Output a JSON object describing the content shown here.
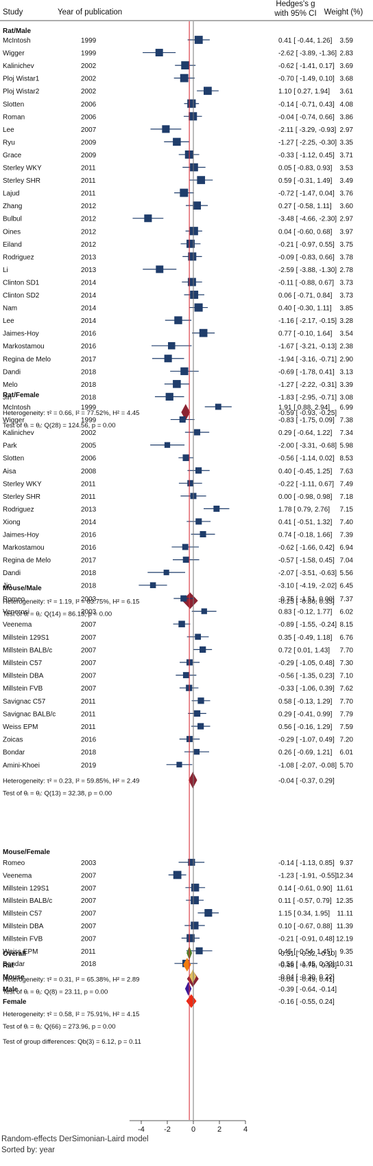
{
  "header": {
    "study": "Study",
    "year": "Year of publication",
    "effect_line1": "Hedges's g",
    "effect_line2": "with 95% CI",
    "weight": "Weight (%)"
  },
  "groups": [
    {
      "label": "Rat/Male",
      "studies": [
        {
          "study": "McIntosh",
          "year": "1999",
          "g": 0.41,
          "lo": -0.44,
          "hi": 1.26,
          "text": "0.41 [ -0.44,  1.26]",
          "weight": "3.59"
        },
        {
          "study": "Wigger",
          "year": "1999",
          "g": -2.62,
          "lo": -3.89,
          "hi": -1.36,
          "text": "-2.62 [ -3.89, -1.36]",
          "weight": "2.83"
        },
        {
          "study": "Kalinichev",
          "year": "2002",
          "g": -0.62,
          "lo": -1.41,
          "hi": 0.17,
          "text": "-0.62 [ -1.41,  0.17]",
          "weight": "3.69"
        },
        {
          "study": "Ploj Wistar1",
          "year": "2002",
          "g": -0.7,
          "lo": -1.49,
          "hi": 0.1,
          "text": "-0.70 [ -1.49,  0.10]",
          "weight": "3.68"
        },
        {
          "study": "Ploj Wistar2",
          "year": "2002",
          "g": 1.1,
          "lo": 0.27,
          "hi": 1.94,
          "text": "1.10 [  0.27,  1.94]",
          "weight": "3.61"
        },
        {
          "study": "Slotten",
          "year": "2006",
          "g": -0.14,
          "lo": -0.71,
          "hi": 0.43,
          "text": "-0.14 [ -0.71,  0.43]",
          "weight": "4.08"
        },
        {
          "study": "Roman",
          "year": "2006",
          "g": -0.04,
          "lo": -0.74,
          "hi": 0.66,
          "text": "-0.04 [ -0.74,  0.66]",
          "weight": "3.86"
        },
        {
          "study": "Lee",
          "year": "2007",
          "g": -2.11,
          "lo": -3.29,
          "hi": -0.93,
          "text": "-2.11 [ -3.29, -0.93]",
          "weight": "2.97"
        },
        {
          "study": "Ryu",
          "year": "2009",
          "g": -1.27,
          "lo": -2.25,
          "hi": -0.3,
          "text": "-1.27 [ -2.25, -0.30]",
          "weight": "3.35"
        },
        {
          "study": "Grace",
          "year": "2009",
          "g": -0.33,
          "lo": -1.12,
          "hi": 0.45,
          "text": "-0.33 [ -1.12,  0.45]",
          "weight": "3.71"
        },
        {
          "study": "Sterley WKY",
          "year": "2011",
          "g": 0.05,
          "lo": -0.83,
          "hi": 0.93,
          "text": "0.05 [ -0.83,  0.93]",
          "weight": "3.53"
        },
        {
          "study": "Sterley SHR",
          "year": "2011",
          "g": 0.59,
          "lo": -0.31,
          "hi": 1.49,
          "text": "0.59 [ -0.31,  1.49]",
          "weight": "3.49"
        },
        {
          "study": "Lajud",
          "year": "2011",
          "g": -0.72,
          "lo": -1.47,
          "hi": 0.04,
          "text": "-0.72 [ -1.47,  0.04]",
          "weight": "3.76"
        },
        {
          "study": "Zhang",
          "year": "2012",
          "g": 0.27,
          "lo": -0.58,
          "hi": 1.11,
          "text": "0.27 [ -0.58,  1.11]",
          "weight": "3.60"
        },
        {
          "study": "Bulbul",
          "year": "2012",
          "g": -3.48,
          "lo": -4.66,
          "hi": -2.3,
          "text": "-3.48 [ -4.66, -2.30]",
          "weight": "2.97"
        },
        {
          "study": "Oines",
          "year": "2012",
          "g": 0.04,
          "lo": -0.6,
          "hi": 0.68,
          "text": "0.04 [ -0.60,  0.68]",
          "weight": "3.97"
        },
        {
          "study": "Eiland",
          "year": "2012",
          "g": -0.21,
          "lo": -0.97,
          "hi": 0.55,
          "text": "-0.21 [ -0.97,  0.55]",
          "weight": "3.75"
        },
        {
          "study": "Rodriguez",
          "year": "2013",
          "g": -0.09,
          "lo": -0.83,
          "hi": 0.66,
          "text": "-0.09 [ -0.83,  0.66]",
          "weight": "3.78"
        },
        {
          "study": "Li",
          "year": "2013",
          "g": -2.59,
          "lo": -3.88,
          "hi": -1.3,
          "text": "-2.59 [ -3.88, -1.30]",
          "weight": "2.78"
        },
        {
          "study": "Clinton SD1",
          "year": "2014",
          "g": -0.11,
          "lo": -0.88,
          "hi": 0.67,
          "text": "-0.11 [ -0.88,  0.67]",
          "weight": "3.73"
        },
        {
          "study": "Clinton SD2",
          "year": "2014",
          "g": 0.06,
          "lo": -0.71,
          "hi": 0.84,
          "text": "0.06 [ -0.71,  0.84]",
          "weight": "3.73"
        },
        {
          "study": "Nam",
          "year": "2014",
          "g": 0.4,
          "lo": -0.3,
          "hi": 1.11,
          "text": "0.40 [ -0.30,  1.11]",
          "weight": "3.85"
        },
        {
          "study": "Lee",
          "year": "2014",
          "g": -1.16,
          "lo": -2.17,
          "hi": -0.15,
          "text": "-1.16 [ -2.17, -0.15]",
          "weight": "3.28"
        },
        {
          "study": "Jaimes-Hoy",
          "year": "2016",
          "g": 0.77,
          "lo": -0.1,
          "hi": 1.64,
          "text": "0.77 [ -0.10,  1.64]",
          "weight": "3.54"
        },
        {
          "study": "Markostamou",
          "year": "2016",
          "g": -1.67,
          "lo": -3.21,
          "hi": -0.13,
          "text": "-1.67 [ -3.21, -0.13]",
          "weight": "2.38"
        },
        {
          "study": "Regina de Melo",
          "year": "2017",
          "g": -1.94,
          "lo": -3.16,
          "hi": -0.71,
          "text": "-1.94 [ -3.16, -0.71]",
          "weight": "2.90"
        },
        {
          "study": "Dandi",
          "year": "2018",
          "g": -0.69,
          "lo": -1.78,
          "hi": 0.41,
          "text": "-0.69 [ -1.78,  0.41]",
          "weight": "3.13"
        },
        {
          "study": "Melo",
          "year": "2018",
          "g": -1.27,
          "lo": -2.22,
          "hi": -0.31,
          "text": "-1.27 [ -2.22, -0.31]",
          "weight": "3.39"
        },
        {
          "study": "Jin",
          "year": "2018",
          "g": -1.83,
          "lo": -2.95,
          "hi": -0.71,
          "text": "-1.83 [ -2.95, -0.71]",
          "weight": "3.08"
        }
      ],
      "summary": {
        "label": "Heterogeneity: τ² = 0.66, I² = 77.52%, H² = 4.45",
        "g": -0.59,
        "lo": -0.93,
        "hi": -0.25,
        "text": "-0.59 [ -0.93, -0.25]"
      },
      "test": "Test of θᵢ = θⱼ: Q(28) = 124.56, p = 0.00"
    },
    {
      "label": "Rat/Female",
      "studies": [
        {
          "study": "McIntosh",
          "year": "1999",
          "g": 1.91,
          "lo": 0.88,
          "hi": 2.94,
          "text": "1.91 [  0.88,  2.94]",
          "weight": "6.99"
        },
        {
          "study": "Wigger",
          "year": "1999",
          "g": -0.83,
          "lo": -1.75,
          "hi": 0.09,
          "text": "-0.83 [ -1.75,  0.09]",
          "weight": "7.38"
        },
        {
          "study": "Kalinichev",
          "year": "2002",
          "g": 0.29,
          "lo": -0.64,
          "hi": 1.22,
          "text": "0.29 [ -0.64,  1.22]",
          "weight": "7.34"
        },
        {
          "study": "Park",
          "year": "2005",
          "g": -2.0,
          "lo": -3.31,
          "hi": -0.68,
          "text": "-2.00 [ -3.31, -0.68]",
          "weight": "5.98"
        },
        {
          "study": "Slotten",
          "year": "2006",
          "g": -0.56,
          "lo": -1.14,
          "hi": 0.02,
          "text": "-0.56 [ -1.14,  0.02]",
          "weight": "8.53"
        },
        {
          "study": "Aisa",
          "year": "2008",
          "g": 0.4,
          "lo": -0.45,
          "hi": 1.25,
          "text": "0.40 [ -0.45,  1.25]",
          "weight": "7.63"
        },
        {
          "study": "Sterley WKY",
          "year": "2011",
          "g": -0.22,
          "lo": -1.11,
          "hi": 0.67,
          "text": "-0.22 [ -1.11,  0.67]",
          "weight": "7.49"
        },
        {
          "study": "Sterley SHR",
          "year": "2011",
          "g": 0.0,
          "lo": -0.98,
          "hi": 0.98,
          "text": "0.00 [ -0.98,  0.98]",
          "weight": "7.18"
        },
        {
          "study": "Rodriguez",
          "year": "2013",
          "g": 1.78,
          "lo": 0.79,
          "hi": 2.76,
          "text": "1.78 [  0.79,  2.76]",
          "weight": "7.15"
        },
        {
          "study": "Xiong",
          "year": "2014",
          "g": 0.41,
          "lo": -0.51,
          "hi": 1.32,
          "text": "0.41 [ -0.51,  1.32]",
          "weight": "7.40"
        },
        {
          "study": "Jaimes-Hoy",
          "year": "2016",
          "g": 0.74,
          "lo": -0.18,
          "hi": 1.66,
          "text": "0.74 [ -0.18,  1.66]",
          "weight": "7.39"
        },
        {
          "study": "Markostamou",
          "year": "2016",
          "g": -0.62,
          "lo": -1.66,
          "hi": 0.42,
          "text": "-0.62 [ -1.66,  0.42]",
          "weight": "6.94"
        },
        {
          "study": "Regina de Melo",
          "year": "2017",
          "g": -0.57,
          "lo": -1.58,
          "hi": 0.45,
          "text": "-0.57 [ -1.58,  0.45]",
          "weight": "7.04"
        },
        {
          "study": "Dandi",
          "year": "2018",
          "g": -2.07,
          "lo": -3.51,
          "hi": -0.63,
          "text": "-2.07 [ -3.51, -0.63]",
          "weight": "5.56"
        },
        {
          "study": "Jin",
          "year": "2018",
          "g": -3.1,
          "lo": -4.19,
          "hi": -2.02,
          "text": "-3.10 [ -4.19, -2.02]",
          "weight": "6.45"
        }
      ],
      "summary": {
        "label": "Heterogeneity: τ² = 1.19, I² = 83.75%, H² = 6.15",
        "g": -0.25,
        "lo": -0.86,
        "hi": 0.35,
        "text": "-0.25 [ -0.86,  0.35]"
      },
      "test": "Test of θᵢ = θⱼ: Q(14) = 86.13, p = 0.00"
    },
    {
      "label": "Mouse/Male",
      "studies": [
        {
          "study": "Romeo",
          "year": "2003",
          "g": -0.75,
          "lo": -1.51,
          "hi": 0.0,
          "text": "-0.75 [ -1.51,  0.00]",
          "weight": "7.37"
        },
        {
          "study": "Venerosi",
          "year": "2003",
          "g": 0.83,
          "lo": -0.12,
          "hi": 1.77,
          "text": "0.83 [ -0.12,  1.77]",
          "weight": "6.02"
        },
        {
          "study": "Veenema",
          "year": "2007",
          "g": -0.89,
          "lo": -1.55,
          "hi": -0.24,
          "text": "-0.89 [ -1.55, -0.24]",
          "weight": "8.15"
        },
        {
          "study": "Millstein 129S1",
          "year": "2007",
          "g": 0.35,
          "lo": -0.49,
          "hi": 1.18,
          "text": "0.35 [ -0.49,  1.18]",
          "weight": "6.76"
        },
        {
          "study": "Millstein BALB/c",
          "year": "2007",
          "g": 0.72,
          "lo": 0.01,
          "hi": 1.43,
          "text": "0.72 [  0.01,  1.43]",
          "weight": "7.70"
        },
        {
          "study": "Millstein C57",
          "year": "2007",
          "g": -0.29,
          "lo": -1.05,
          "hi": 0.48,
          "text": "-0.29 [ -1.05,  0.48]",
          "weight": "7.30"
        },
        {
          "study": "Millstein DBA",
          "year": "2007",
          "g": -0.56,
          "lo": -1.35,
          "hi": 0.23,
          "text": "-0.56 [ -1.35,  0.23]",
          "weight": "7.10"
        },
        {
          "study": "Millstein FVB",
          "year": "2007",
          "g": -0.33,
          "lo": -1.06,
          "hi": 0.39,
          "text": "-0.33 [ -1.06,  0.39]",
          "weight": "7.62"
        },
        {
          "study": "Savignac C57",
          "year": "2011",
          "g": 0.58,
          "lo": -0.13,
          "hi": 1.29,
          "text": "0.58 [ -0.13,  1.29]",
          "weight": "7.70"
        },
        {
          "study": "Savignac BALB/c",
          "year": "2011",
          "g": 0.29,
          "lo": -0.41,
          "hi": 0.99,
          "text": "0.29 [ -0.41,  0.99]",
          "weight": "7.79"
        },
        {
          "study": "Weiss EPM",
          "year": "2011",
          "g": 0.56,
          "lo": -0.16,
          "hi": 1.29,
          "text": "0.56 [ -0.16,  1.29]",
          "weight": "7.59"
        },
        {
          "study": "Zoicas",
          "year": "2016",
          "g": -0.29,
          "lo": -1.07,
          "hi": 0.49,
          "text": "-0.29 [ -1.07,  0.49]",
          "weight": "7.20"
        },
        {
          "study": "Bondar",
          "year": "2018",
          "g": 0.26,
          "lo": -0.69,
          "hi": 1.21,
          "text": "0.26 [ -0.69,  1.21]",
          "weight": "6.01"
        },
        {
          "study": "Amini-Khoei",
          "year": "2019",
          "g": -1.08,
          "lo": -2.07,
          "hi": -0.08,
          "text": "-1.08 [ -2.07, -0.08]",
          "weight": "5.70"
        }
      ],
      "summary": {
        "label": "Heterogeneity: τ² = 0.23, I² = 59.85%, H² = 2.49",
        "g": -0.04,
        "lo": -0.37,
        "hi": 0.29,
        "text": "-0.04 [ -0.37,  0.29]"
      },
      "test": "Test of θᵢ = θⱼ: Q(13) = 32.38, p = 0.00"
    },
    {
      "label": "Mouse/Female",
      "studies": [
        {
          "study": "Romeo",
          "year": "2003",
          "g": -0.14,
          "lo": -1.13,
          "hi": 0.85,
          "text": "-0.14 [ -1.13,  0.85]",
          "weight": "9.37"
        },
        {
          "study": "Veenema",
          "year": "2007",
          "g": -1.23,
          "lo": -1.91,
          "hi": -0.55,
          "text": "-1.23 [ -1.91, -0.55]",
          "weight": "12.34"
        },
        {
          "study": "Millstein 129S1",
          "year": "2007",
          "g": 0.14,
          "lo": -0.61,
          "hi": 0.9,
          "text": "0.14 [ -0.61,  0.90]",
          "weight": "11.61"
        },
        {
          "study": "Millstein BALB/c",
          "year": "2007",
          "g": 0.11,
          "lo": -0.57,
          "hi": 0.79,
          "text": "0.11 [ -0.57,  0.79]",
          "weight": "12.35"
        },
        {
          "study": "Millstein C57",
          "year": "2007",
          "g": 1.15,
          "lo": 0.34,
          "hi": 1.95,
          "text": "1.15 [  0.34,  1.95]",
          "weight": "11.11"
        },
        {
          "study": "Millstein DBA",
          "year": "2007",
          "g": 0.1,
          "lo": -0.67,
          "hi": 0.88,
          "text": "0.10 [ -0.67,  0.88]",
          "weight": "11.39"
        },
        {
          "study": "Millstein FVB",
          "year": "2007",
          "g": -0.21,
          "lo": -0.91,
          "hi": 0.48,
          "text": "-0.21 [ -0.91,  0.48]",
          "weight": "12.19"
        },
        {
          "study": "Weiss EPM",
          "year": "2011",
          "g": 0.45,
          "lo": -0.54,
          "hi": 1.45,
          "text": "0.45 [ -0.54,  1.45]",
          "weight": "9.35"
        },
        {
          "study": "Bondar",
          "year": "2018",
          "g": -0.56,
          "lo": -1.45,
          "hi": 0.32,
          "text": "-0.56 [ -1.45,  0.32]",
          "weight": "10.31"
        }
      ],
      "summary": {
        "label": "Heterogeneity: τ² = 0.31, I² = 65.38%, H² = 2.89",
        "g": -0.04,
        "lo": -0.49,
        "hi": 0.41,
        "text": "-0.04 [ -0.49,  0.41]"
      },
      "test": "Test of θᵢ = θⱼ: Q(8) = 23.11, p = 0.00"
    }
  ],
  "overall_rows": [
    {
      "label": "Overall",
      "g": -0.31,
      "lo": -0.52,
      "hi": -0.1,
      "text": "-0.31 [ -0.52, -0.10]",
      "color": "#4f7f2a"
    },
    {
      "label": "Rat",
      "g": -0.48,
      "lo": -0.78,
      "hi": -0.18,
      "text": "-0.48 [ -0.78, -0.18]",
      "color": "#f07d10"
    },
    {
      "label": "Mouse",
      "g": -0.04,
      "lo": -0.3,
      "hi": 0.22,
      "text": "-0.04 [ -0.30,  0.22]",
      "color": "#e0c060"
    },
    {
      "label": "Male",
      "g": -0.39,
      "lo": -0.64,
      "hi": -0.14,
      "text": "-0.39 [ -0.64, -0.14]",
      "color": "#3a1a9a"
    },
    {
      "label": "Female",
      "g": -0.16,
      "lo": -0.55,
      "hi": 0.24,
      "text": "-0.16 [ -0.55,  0.24]",
      "color": "#ee2a12"
    }
  ],
  "overall_notes": [
    "Heterogeneity: τ² = 0.58, I² = 75.91%, H² = 4.15",
    "Test of θᵢ = θⱼ: Q(66) = 273.96, p = 0.00",
    "Test of group differences: Q_b(3) = 6.12, p = 0.11"
  ],
  "footer": {
    "line1": "Random-effects DerSimonian-Laird model",
    "line2": "Sorted by: year"
  },
  "colors": {
    "square": "#1f3d6b",
    "diamond": "#8b2332",
    "overall_line": "#d9303a",
    "null_line": "#777777"
  },
  "chart_data": {
    "type": "scatter",
    "xlim": [
      -4.9,
      4
    ],
    "xticks": [
      -4,
      -2,
      0,
      2,
      4
    ],
    "null_value": 0,
    "overall_estimate": -0.31
  }
}
